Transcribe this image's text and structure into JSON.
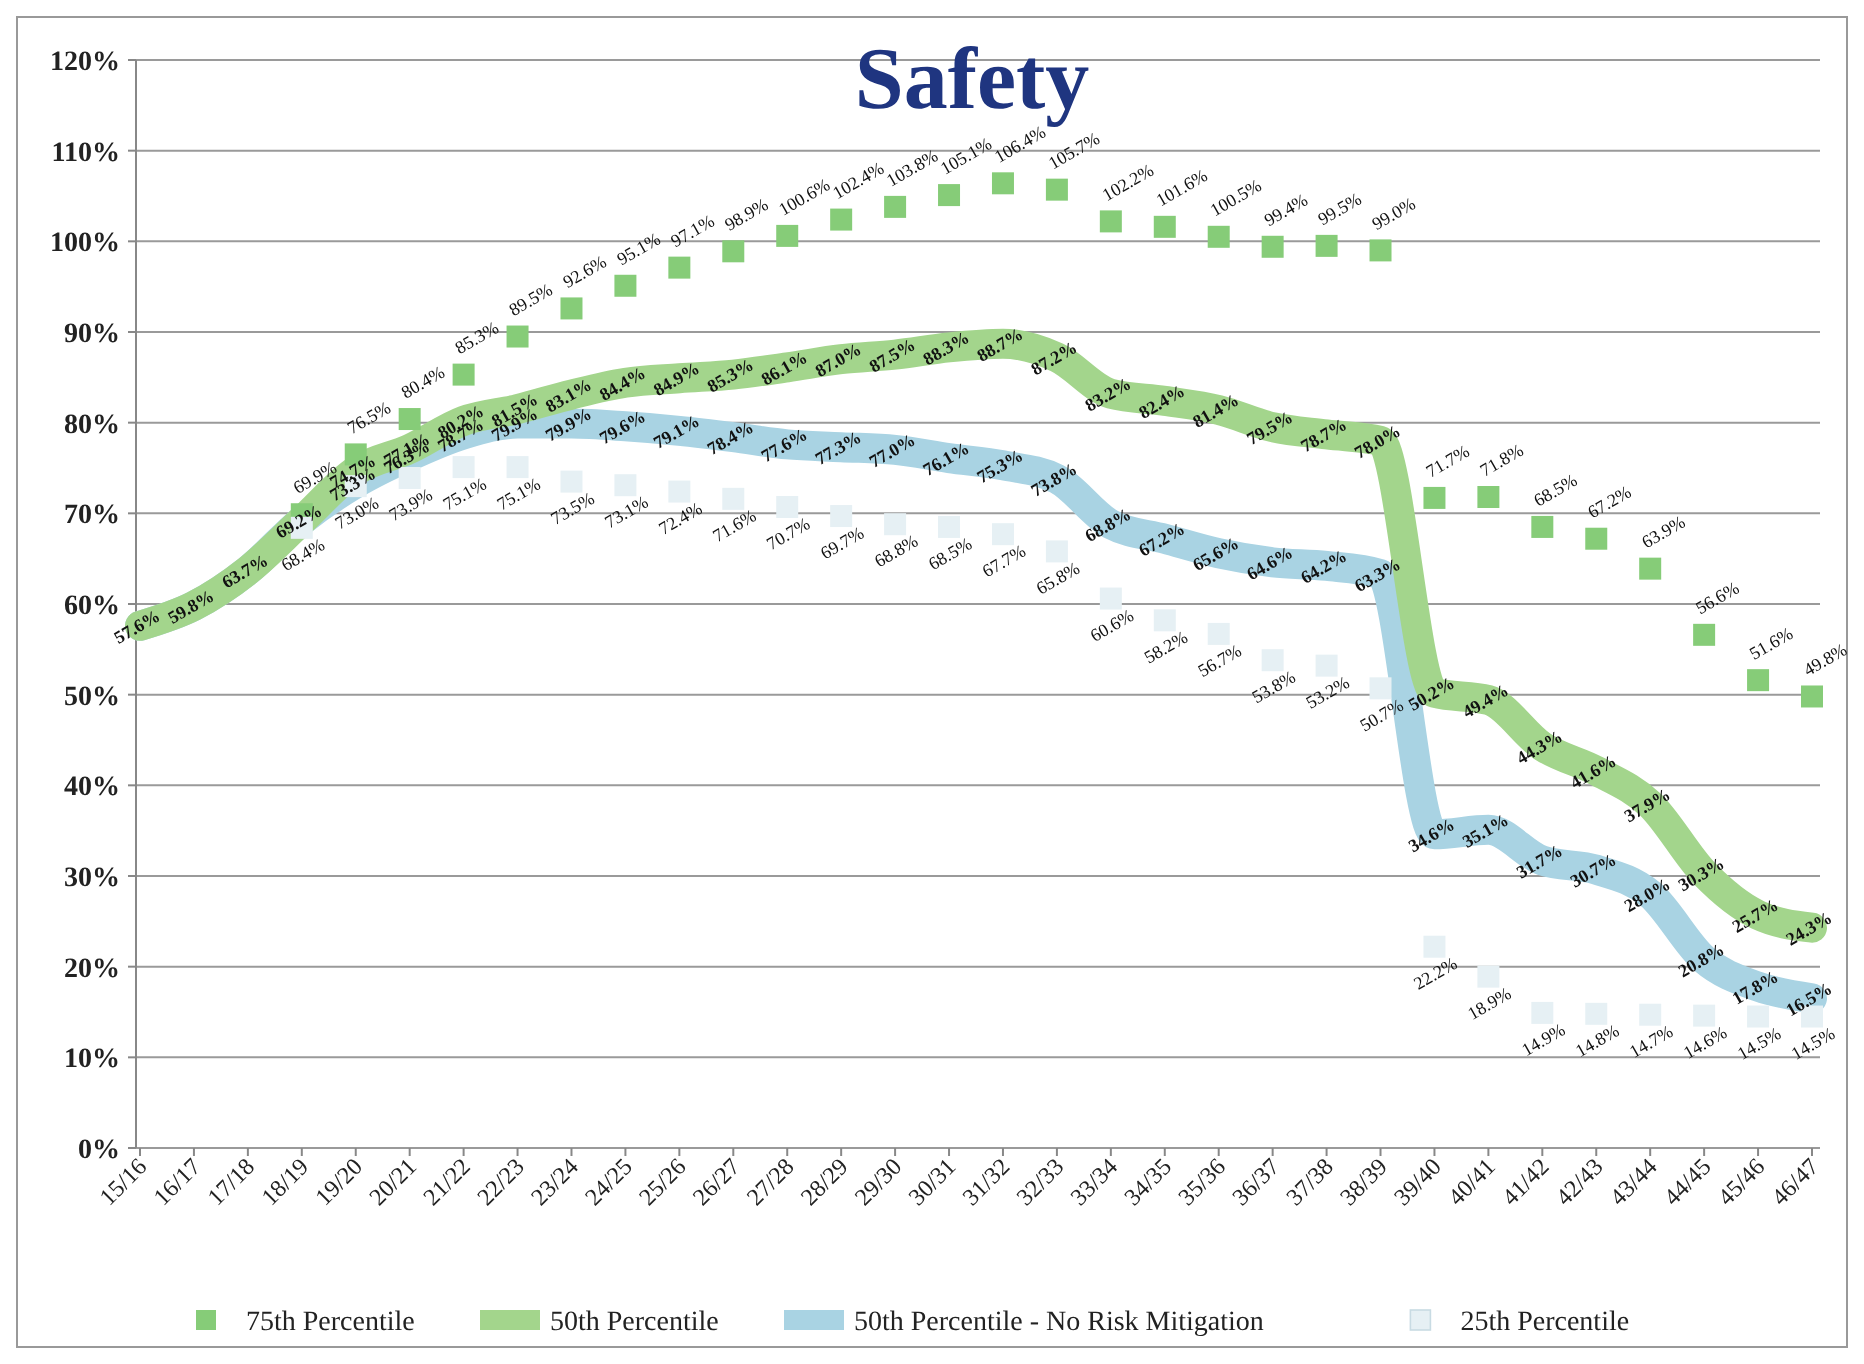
{
  "chart_data": {
    "type": "line",
    "title": "Safety",
    "categories": [
      "15/16",
      "16/17",
      "17/18",
      "18/19",
      "19/20",
      "20/21",
      "21/22",
      "22/23",
      "23/24",
      "24/25",
      "25/26",
      "26/27",
      "27/28",
      "28/29",
      "29/30",
      "30/31",
      "31/32",
      "32/33",
      "33/34",
      "34/35",
      "35/36",
      "36/37",
      "37/38",
      "38/39",
      "39/40",
      "40/41",
      "41/42",
      "42/43",
      "43/44",
      "44/45",
      "45/46",
      "46/47"
    ],
    "series": [
      {
        "name": "50th Percentile - No Risk Mitigation",
        "type": "line",
        "color": "#a9d3e3",
        "values": [
          57.6,
          59.8,
          63.7,
          69.2,
          73.3,
          76.3,
          78.7,
          79.9,
          79.9,
          79.6,
          79.1,
          78.4,
          77.6,
          77.3,
          77.0,
          76.1,
          75.3,
          73.8,
          68.8,
          67.2,
          65.6,
          64.6,
          64.2,
          63.3,
          34.6,
          35.1,
          31.7,
          30.7,
          28.0,
          20.8,
          17.8,
          16.5
        ],
        "value_labels": [
          null,
          null,
          null,
          null,
          "73.3%",
          "76.3%",
          "78.7%",
          "79.9%",
          "79.9%",
          "79.6%",
          "79.1%",
          "78.4%",
          "77.6%",
          "77.3%",
          "77.0%",
          "76.1%",
          "75.3%",
          "73.8%",
          "68.8%",
          "67.2%",
          "65.6%",
          "64.6%",
          "64.2%",
          "63.3%",
          "34.6%",
          "35.1%",
          "31.7%",
          "30.7%",
          "28.0%",
          "20.8%",
          "17.8%",
          "16.5%"
        ]
      },
      {
        "name": "50th Percentile",
        "type": "line",
        "color": "#a3d58c",
        "values": [
          57.6,
          59.8,
          63.7,
          69.2,
          74.7,
          77.1,
          80.2,
          81.5,
          83.1,
          84.4,
          84.9,
          85.3,
          86.1,
          87.0,
          87.5,
          88.3,
          88.7,
          87.2,
          83.2,
          82.4,
          81.4,
          79.5,
          78.7,
          78.0,
          50.2,
          49.4,
          44.3,
          41.6,
          37.9,
          30.3,
          25.7,
          24.3
        ],
        "value_labels": [
          "57.6%",
          "59.8%",
          "63.7%",
          "69.2%",
          "74.7%",
          "77.1%",
          "80.2%",
          "81.5%",
          "83.1%",
          "84.4%",
          "84.9%",
          "85.3%",
          "86.1%",
          "87.0%",
          "87.5%",
          "88.3%",
          "88.7%",
          "87.2%",
          "83.2%",
          "82.4%",
          "81.4%",
          "79.5%",
          "78.7%",
          "78.0%",
          "50.2%",
          "49.4%",
          "44.3%",
          "41.6%",
          "37.9%",
          "30.3%",
          "25.7%",
          "24.3%"
        ]
      },
      {
        "name": "75th Percentile",
        "type": "scatter",
        "marker": "square",
        "color": "#86cc78",
        "values": [
          null,
          null,
          null,
          69.9,
          76.5,
          80.4,
          85.3,
          89.5,
          92.6,
          95.1,
          97.1,
          98.9,
          100.6,
          102.4,
          103.8,
          105.1,
          106.4,
          105.7,
          102.2,
          101.6,
          100.5,
          99.4,
          99.5,
          99.0,
          71.7,
          71.8,
          68.5,
          67.2,
          63.9,
          56.6,
          51.6,
          49.8
        ],
        "value_labels": [
          null,
          null,
          null,
          "69.9%",
          "76.5%",
          "80.4%",
          "85.3%",
          "89.5%",
          "92.6%",
          "95.1%",
          "97.1%",
          "98.9%",
          "100.6%",
          "102.4%",
          "103.8%",
          "105.1%",
          "106.4%",
          "105.7%",
          "102.2%",
          "101.6%",
          "100.5%",
          "99.4%",
          "99.5%",
          "99.0%",
          "71.7%",
          "71.8%",
          "68.5%",
          "67.2%",
          "63.9%",
          "56.6%",
          "51.6%",
          "49.8%"
        ]
      },
      {
        "name": "25th Percentile",
        "type": "scatter",
        "marker": "square",
        "color": "#e6f0f4",
        "values": [
          null,
          null,
          null,
          68.4,
          73.0,
          73.9,
          75.1,
          75.1,
          73.5,
          73.1,
          72.4,
          71.6,
          70.7,
          69.7,
          68.8,
          68.5,
          67.7,
          65.8,
          60.6,
          58.2,
          56.7,
          53.8,
          53.2,
          50.7,
          22.2,
          18.9,
          14.9,
          14.8,
          14.7,
          14.6,
          14.5,
          14.5
        ],
        "value_labels": [
          null,
          null,
          null,
          "68.4%",
          "73.0%",
          "73.9%",
          "75.1%",
          "75.1%",
          "73.5%",
          "73.1%",
          "72.4%",
          "71.6%",
          "70.7%",
          "69.7%",
          "68.8%",
          "68.5%",
          "67.7%",
          "65.8%",
          "60.6%",
          "58.2%",
          "56.7%",
          "53.8%",
          "53.2%",
          "50.7%",
          "22.2%",
          "18.9%",
          "14.9%",
          "14.8%",
          "14.7%",
          "14.6%",
          "14.5%",
          "14.5%"
        ]
      }
    ],
    "ylim": [
      0,
      120
    ],
    "yticks": [
      {
        "value": 0,
        "label": "0%"
      },
      {
        "value": 10,
        "label": "10%"
      },
      {
        "value": 20,
        "label": "20%"
      },
      {
        "value": 30,
        "label": "30%"
      },
      {
        "value": 40,
        "label": "40%"
      },
      {
        "value": 50,
        "label": "50%"
      },
      {
        "value": 60,
        "label": "60%"
      },
      {
        "value": 70,
        "label": "70%"
      },
      {
        "value": 80,
        "label": "80%"
      },
      {
        "value": 90,
        "label": "90%"
      },
      {
        "value": 100,
        "label": "100%"
      },
      {
        "value": 110,
        "label": "110%"
      },
      {
        "value": 120,
        "label": "120%"
      }
    ],
    "grid": "y",
    "legend": "bottom",
    "line_style": "solid"
  }
}
